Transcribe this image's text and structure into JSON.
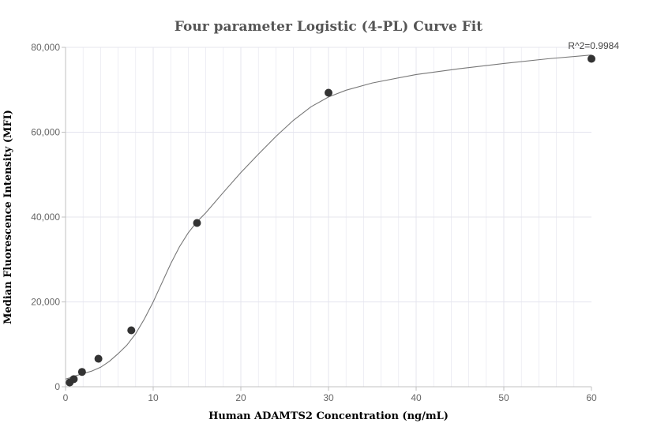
{
  "chart_data": {
    "type": "scatter",
    "title": "Four parameter Logistic (4-PL) Curve Fit",
    "xlabel": "Human ADAMTS2 Concentration (ng/mL)",
    "ylabel": "Median Fluorescence Intensity (MFI)",
    "xlim": [
      0,
      60
    ],
    "ylim": [
      0,
      80000
    ],
    "x_ticks": [
      0,
      10,
      20,
      30,
      40,
      50,
      60
    ],
    "y_ticks": [
      0,
      20000,
      40000,
      60000,
      80000
    ],
    "x_tick_labels": [
      "0",
      "10",
      "20",
      "30",
      "40",
      "50",
      "60"
    ],
    "y_tick_labels": [
      "0",
      "20,000",
      "40,000",
      "60,000",
      "80,000"
    ],
    "points": [
      {
        "x": 0.47,
        "y": 1000
      },
      {
        "x": 0.94,
        "y": 1800
      },
      {
        "x": 1.88,
        "y": 3500
      },
      {
        "x": 3.75,
        "y": 6600
      },
      {
        "x": 7.5,
        "y": 13300
      },
      {
        "x": 15,
        "y": 38600
      },
      {
        "x": 30,
        "y": 69300
      },
      {
        "x": 60,
        "y": 77300
      }
    ],
    "fit_curve": {
      "type": "4PL",
      "x": [
        0,
        0.5,
        1,
        2,
        3,
        4,
        5,
        6,
        7,
        8,
        9,
        10,
        11,
        12,
        13,
        14,
        15,
        16,
        18,
        20,
        22,
        24,
        26,
        28,
        30,
        32,
        35,
        40,
        45,
        50,
        55,
        60
      ],
      "y": [
        1800,
        2100,
        2500,
        3100,
        3700,
        4600,
        6000,
        7800,
        9800,
        12500,
        16000,
        20000,
        24500,
        29000,
        33000,
        36300,
        38900,
        41000,
        45800,
        50500,
        54800,
        59000,
        62800,
        66000,
        68300,
        69900,
        71600,
        73600,
        75000,
        76200,
        77300,
        78200
      ]
    },
    "annotation": "R^2=0.9984",
    "grid": true,
    "colors": {
      "point": "#333333",
      "curve": "#777777",
      "grid": "#e4e4ee",
      "axis": "#c0c0c0"
    }
  }
}
